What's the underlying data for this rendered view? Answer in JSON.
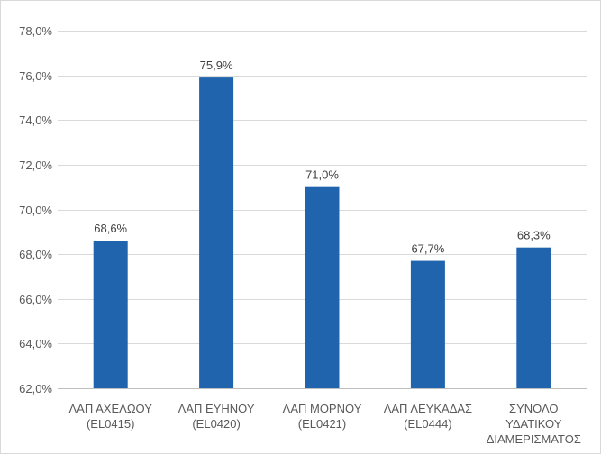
{
  "chart_data": {
    "type": "bar",
    "categories": [
      [
        "ΛΑΠ ΑΧΕΛΩΟΥ",
        "(EL0415)"
      ],
      [
        "ΛΑΠ ΕΥΗΝΟΥ",
        "(EL0420)"
      ],
      [
        "ΛΑΠ ΜΟΡΝΟΥ",
        "(EL0421)"
      ],
      [
        "ΛΑΠ ΛΕΥΚΑΔΑΣ",
        "(EL0444)"
      ],
      [
        "ΣΥΝΟΛΟ",
        "ΥΔΑΤΙΚΟΥ",
        "ΔΙΑΜΕΡΙΣΜΑΤΟΣ"
      ]
    ],
    "values": [
      68.6,
      75.9,
      71.0,
      67.7,
      68.3
    ],
    "value_labels": [
      "68,6%",
      "75,9%",
      "71,0%",
      "67,7%",
      "68,3%"
    ],
    "title": "",
    "xlabel": "",
    "ylabel": "",
    "ylim": [
      62.0,
      78.0
    ],
    "yticks": [
      62.0,
      64.0,
      66.0,
      68.0,
      70.0,
      72.0,
      74.0,
      76.0,
      78.0
    ],
    "ytick_labels": [
      "62,0%",
      "64,0%",
      "66,0%",
      "68,0%",
      "70,0%",
      "72,0%",
      "74,0%",
      "76,0%",
      "78,0%"
    ],
    "grid": true,
    "legend": "none",
    "colors": {
      "bar": "#1f64ad",
      "grid": "#d9d9d9",
      "axis": "#bfbfbf"
    }
  }
}
